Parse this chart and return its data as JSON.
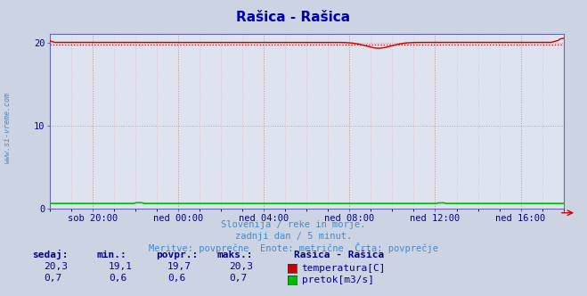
{
  "title": "Rašica - Rašica",
  "title_color": "#0000aa",
  "bg_color": "#ccd4e4",
  "plot_bg_color": "#dde4f0",
  "grid_color_major": "#cc8888",
  "grid_color_minor": "#ddbbbb",
  "spine_color": "#6666aa",
  "tick_color": "#000088",
  "ylim": [
    0,
    21
  ],
  "yticks": [
    0,
    10,
    20
  ],
  "x_labels": [
    "sob 20:00",
    "ned 00:00",
    "ned 04:00",
    "ned 08:00",
    "ned 12:00",
    "ned 16:00"
  ],
  "n_points": 289,
  "temp_avg": 19.7,
  "temp_min": 19.1,
  "temp_max": 20.3,
  "temp_current": 20.3,
  "flow_avg": 0.6,
  "flow_min": 0.6,
  "flow_max": 0.7,
  "flow_current": 0.7,
  "temp_color": "#cc0000",
  "flow_color": "#00bb00",
  "watermark": "www.si-vreme.com",
  "watermark_color": "#4488cc",
  "footer_line1": "Slovenija / reke in morje.",
  "footer_line2": "zadnji dan / 5 minut.",
  "footer_line3": "Meritve: povprečne  Enote: metrične  Črta: povprečje",
  "footer_color": "#4488cc",
  "table_headers": [
    "sedaj:",
    "min.:",
    "povpr.:",
    "maks.:"
  ],
  "table_row1": [
    "20,3",
    "19,1",
    "19,7",
    "20,3"
  ],
  "table_row2": [
    "0,7",
    "0,6",
    "0,6",
    "0,7"
  ],
  "legend_title": "Rašica - Rašica",
  "legend_temp_label": "temperatura[C]",
  "legend_flow_label": "pretok[m3/s]"
}
